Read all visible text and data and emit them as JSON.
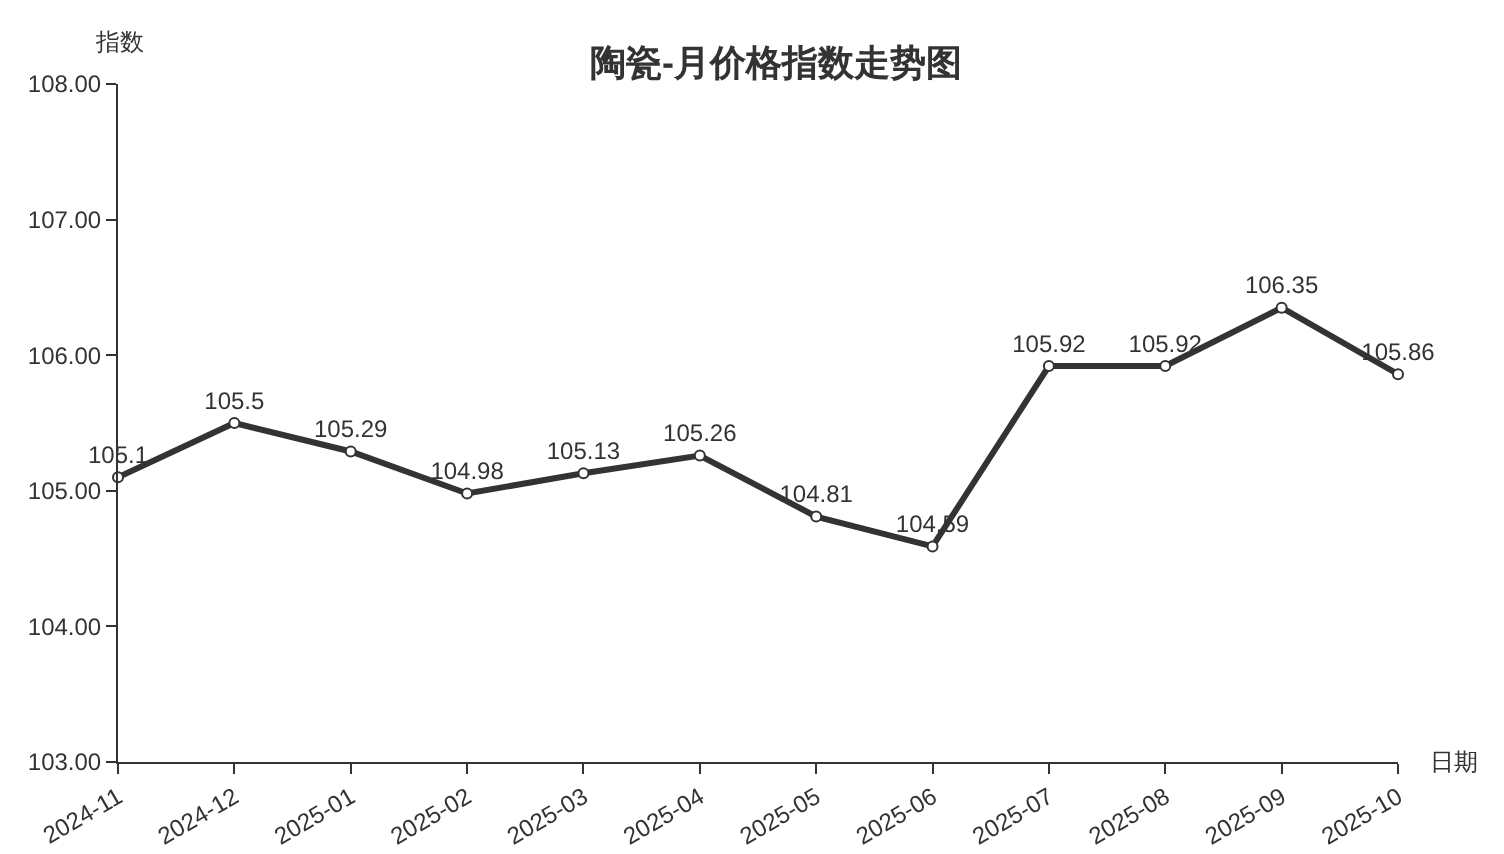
{
  "chart_data": {
    "type": "line",
    "title": "陶瓷-月价格指数走势图",
    "xlabel": "日期",
    "ylabel": "指数",
    "categories": [
      "2024-11",
      "2024-12",
      "2025-01",
      "2025-02",
      "2025-03",
      "2025-04",
      "2025-05",
      "2025-06",
      "2025-07",
      "2025-08",
      "2025-09",
      "2025-10"
    ],
    "series": [
      {
        "color": "#333333",
        "values": [
          105.1,
          105.5,
          105.29,
          104.98,
          105.13,
          105.26,
          104.81,
          104.59,
          105.92,
          105.92,
          106.35,
          105.86
        ]
      }
    ],
    "ylim": [
      103,
      108
    ],
    "yticks": [
      {
        "value": 103,
        "label": "103.00"
      },
      {
        "value": 104,
        "label": "104.00"
      },
      {
        "value": 105,
        "label": "105.00"
      },
      {
        "value": 106,
        "label": "106.00"
      },
      {
        "value": 107,
        "label": "107.00"
      },
      {
        "value": 108,
        "label": "108.00"
      }
    ],
    "marker": "circle",
    "line_style": "solid",
    "data_labels": true
  }
}
